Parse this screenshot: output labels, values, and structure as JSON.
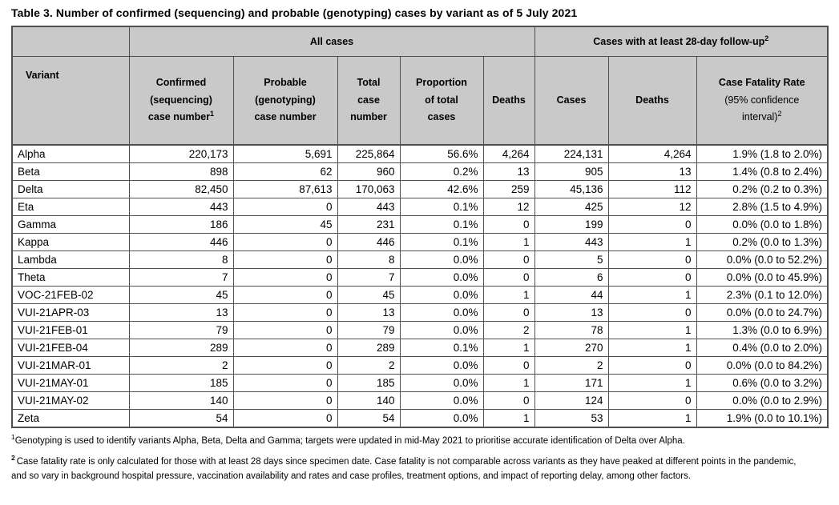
{
  "title": "Table 3. Number of confirmed (sequencing) and probable (genotyping) cases by variant as of 5 July 2021",
  "colors": {
    "header_bg": "#c9c9c9",
    "border": "#4f4f4f",
    "text": "#000000"
  },
  "table": {
    "group": {
      "all_cases": "All cases",
      "followup": "Cases with at least 28-day follow-up",
      "followup_sup": "2"
    },
    "header": {
      "variant": "Variant",
      "confirmed": {
        "l1": "Confirmed",
        "l2": "(sequencing)",
        "l3": "case number",
        "sup": "1"
      },
      "probable": {
        "l1": "Probable",
        "l2": "(genotyping)",
        "l3": "case number"
      },
      "total": {
        "l1": "Total",
        "l2": "case",
        "l3": "number"
      },
      "proportion": {
        "l1": "Proportion",
        "l2": "of total",
        "l3": "cases"
      },
      "deaths": "Deaths",
      "fu_cases": "Cases",
      "fu_deaths": "Deaths",
      "cfr": {
        "l1": "Case Fatality Rate",
        "l2": "(95% confidence",
        "l3": "interval)",
        "sup": "2"
      }
    },
    "rows": [
      {
        "variant": "Alpha",
        "confirmed": "220,173",
        "probable": "5,691",
        "total": "225,864",
        "proportion": "56.6%",
        "deaths": "4,264",
        "fu_cases": "224,131",
        "fu_deaths": "4,264",
        "cfr": "1.9% (1.8 to 2.0%)"
      },
      {
        "variant": "Beta",
        "confirmed": "898",
        "probable": "62",
        "total": "960",
        "proportion": "0.2%",
        "deaths": "13",
        "fu_cases": "905",
        "fu_deaths": "13",
        "cfr": "1.4% (0.8 to 2.4%)"
      },
      {
        "variant": "Delta",
        "confirmed": "82,450",
        "probable": "87,613",
        "total": "170,063",
        "proportion": "42.6%",
        "deaths": "259",
        "fu_cases": "45,136",
        "fu_deaths": "112",
        "cfr": "0.2% (0.2 to 0.3%)"
      },
      {
        "variant": "Eta",
        "confirmed": "443",
        "probable": "0",
        "total": "443",
        "proportion": "0.1%",
        "deaths": "12",
        "fu_cases": "425",
        "fu_deaths": "12",
        "cfr": "2.8% (1.5 to 4.9%)"
      },
      {
        "variant": "Gamma",
        "confirmed": "186",
        "probable": "45",
        "total": "231",
        "proportion": "0.1%",
        "deaths": "0",
        "fu_cases": "199",
        "fu_deaths": "0",
        "cfr": "0.0% (0.0 to 1.8%)"
      },
      {
        "variant": "Kappa",
        "confirmed": "446",
        "probable": "0",
        "total": "446",
        "proportion": "0.1%",
        "deaths": "1",
        "fu_cases": "443",
        "fu_deaths": "1",
        "cfr": "0.2% (0.0 to 1.3%)"
      },
      {
        "variant": "Lambda",
        "confirmed": "8",
        "probable": "0",
        "total": "8",
        "proportion": "0.0%",
        "deaths": "0",
        "fu_cases": "5",
        "fu_deaths": "0",
        "cfr": "0.0% (0.0 to 52.2%)"
      },
      {
        "variant": "Theta",
        "confirmed": "7",
        "probable": "0",
        "total": "7",
        "proportion": "0.0%",
        "deaths": "0",
        "fu_cases": "6",
        "fu_deaths": "0",
        "cfr": "0.0% (0.0 to 45.9%)"
      },
      {
        "variant": "VOC-21FEB-02",
        "confirmed": "45",
        "probable": "0",
        "total": "45",
        "proportion": "0.0%",
        "deaths": "1",
        "fu_cases": "44",
        "fu_deaths": "1",
        "cfr": "2.3% (0.1 to 12.0%)"
      },
      {
        "variant": "VUI-21APR-03",
        "confirmed": "13",
        "probable": "0",
        "total": "13",
        "proportion": "0.0%",
        "deaths": "0",
        "fu_cases": "13",
        "fu_deaths": "0",
        "cfr": "0.0% (0.0 to 24.7%)"
      },
      {
        "variant": "VUI-21FEB-01",
        "confirmed": "79",
        "probable": "0",
        "total": "79",
        "proportion": "0.0%",
        "deaths": "2",
        "fu_cases": "78",
        "fu_deaths": "1",
        "cfr": "1.3% (0.0 to 6.9%)"
      },
      {
        "variant": "VUI-21FEB-04",
        "confirmed": "289",
        "probable": "0",
        "total": "289",
        "proportion": "0.1%",
        "deaths": "1",
        "fu_cases": "270",
        "fu_deaths": "1",
        "cfr": "0.4% (0.0 to 2.0%)"
      },
      {
        "variant": "VUI-21MAR-01",
        "confirmed": "2",
        "probable": "0",
        "total": "2",
        "proportion": "0.0%",
        "deaths": "0",
        "fu_cases": "2",
        "fu_deaths": "0",
        "cfr": "0.0% (0.0 to 84.2%)"
      },
      {
        "variant": "VUI-21MAY-01",
        "confirmed": "185",
        "probable": "0",
        "total": "185",
        "proportion": "0.0%",
        "deaths": "1",
        "fu_cases": "171",
        "fu_deaths": "1",
        "cfr": "0.6% (0.0 to 3.2%)"
      },
      {
        "variant": "VUI-21MAY-02",
        "confirmed": "140",
        "probable": "0",
        "total": "140",
        "proportion": "0.0%",
        "deaths": "0",
        "fu_cases": "124",
        "fu_deaths": "0",
        "cfr": "0.0% (0.0 to 2.9%)"
      },
      {
        "variant": "Zeta",
        "confirmed": "54",
        "probable": "0",
        "total": "54",
        "proportion": "0.0%",
        "deaths": "1",
        "fu_cases": "53",
        "fu_deaths": "1",
        "cfr": "1.9% (0.0 to 10.1%)"
      }
    ]
  },
  "footnotes": [
    {
      "sup": "1",
      "text": "Genotyping is used to identify variants Alpha, Beta, Delta and Gamma; targets were updated in mid-May 2021 to prioritise accurate identification of Delta over Alpha."
    },
    {
      "sup": "2",
      "text": "Case fatality rate is only calculated for those with at least 28 days since specimen date. Case fatality is not comparable across variants as they have peaked at different points in the pandemic, and so vary in background hospital pressure, vaccination availability and rates and case profiles, treatment options, and impact of reporting delay, among other factors."
    }
  ]
}
